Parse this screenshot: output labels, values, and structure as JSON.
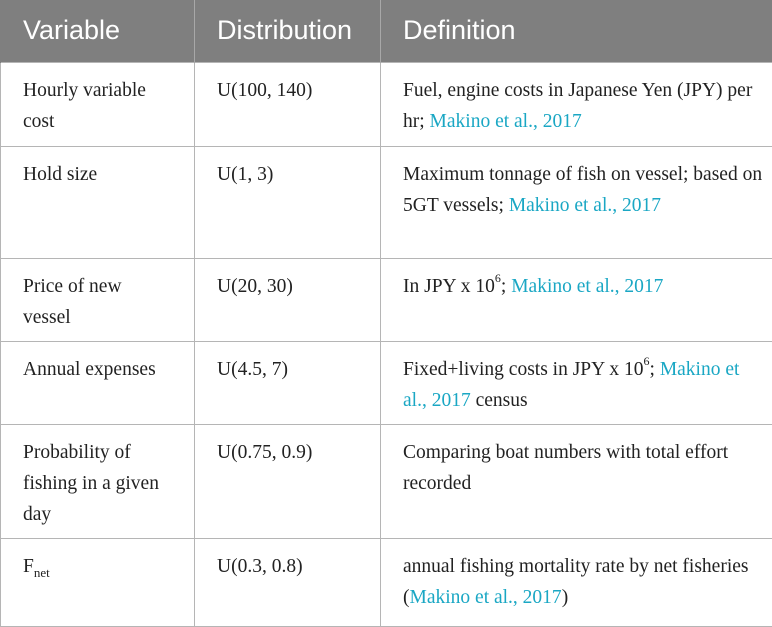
{
  "header": {
    "variable": "Variable",
    "distribution": "Distribution",
    "definition": "Definition"
  },
  "rows": [
    {
      "variable": "Hourly variable cost",
      "distribution": "U(100, 140)",
      "def_text": "Fuel, engine costs in Japanese Yen (JPY) per hr; ",
      "def_ref": "Makino et al., 2017"
    },
    {
      "variable": "Hold size",
      "distribution": "U(1, 3)",
      "def_text": "Maximum tonnage of fish on vessel; based on 5GT vessels; ",
      "def_ref": "Makino et al., 2017"
    },
    {
      "variable": "Price of new vessel",
      "distribution": "U(20, 30)",
      "def_text": "In JPY x 10",
      "def_sup": "6",
      "def_text2": "; ",
      "def_ref": "Makino et al., 2017"
    },
    {
      "variable": "Annual expenses",
      "distribution": "U(4.5, 7)",
      "def_text": "Fixed+living costs in JPY x 10",
      "def_sup": "6",
      "def_text2": "; ",
      "def_ref": "Makino et al., 2017",
      "def_tail": " census"
    },
    {
      "variable": "Probability of fishing in a given day",
      "distribution": "U(0.75, 0.9)",
      "def_text": "Comparing boat numbers with total effort recorded"
    },
    {
      "variable_main": "F",
      "variable_sub": "net",
      "distribution": "U(0.3, 0.8)",
      "def_text": "annual fishing mortality rate by net fisheries (",
      "def_ref": "Makino et al., 2017",
      "def_tail": ")"
    }
  ]
}
